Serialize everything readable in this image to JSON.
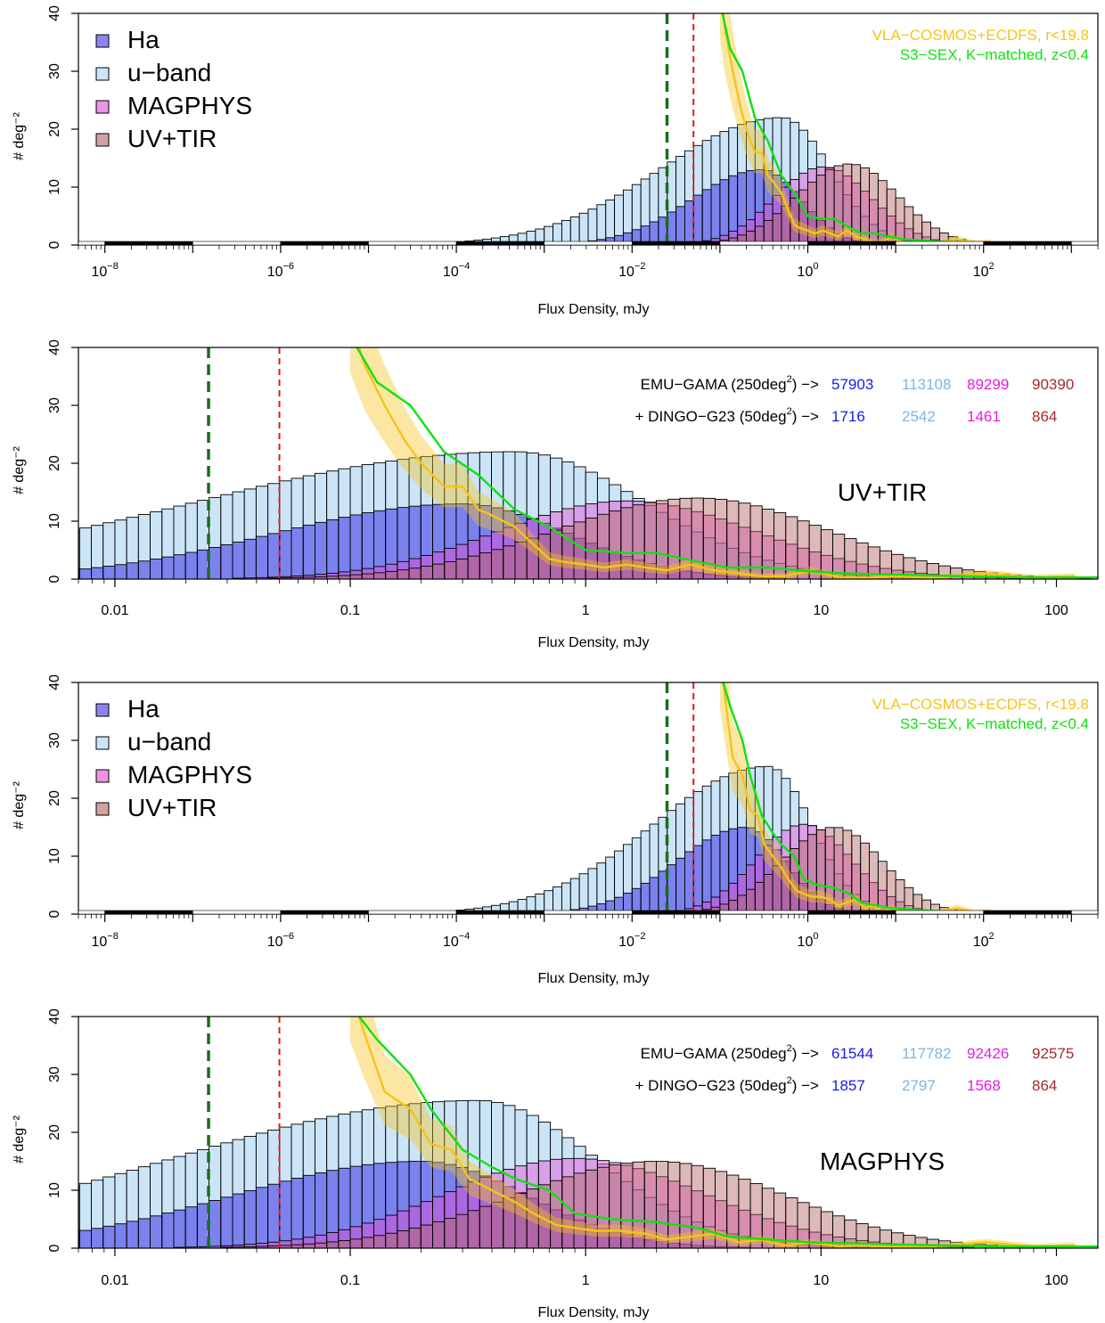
{
  "figure": {
    "colors": {
      "ha": "#3a32e6",
      "uband": "#a9d4f2",
      "magphys": "#e64bd2",
      "uvtir": "#b56363",
      "vla": "#f4c419",
      "s3sex": "#12e012",
      "green_dash": "#1a6e1a",
      "red_dash": "#e01a1a",
      "ha_text": "#1a1ae6",
      "uband_text": "#7cb6e2",
      "magphys_text": "#e61ae6",
      "uvtir_text": "#a52a2a"
    },
    "legend": {
      "hist_items": [
        {
          "key": "ha",
          "label": "Ha"
        },
        {
          "key": "uband",
          "label": "u−band"
        },
        {
          "key": "magphys",
          "label": "MAGPHYS"
        },
        {
          "key": "uvtir",
          "label": "UV+TIR"
        }
      ],
      "line_items": [
        {
          "key": "vla",
          "label": "VLA−COSMOS+ECDFS, r<19.8"
        },
        {
          "key": "s3sex",
          "label": "S3−SEX, K−matched, z<0.4"
        }
      ]
    },
    "markers": {
      "green_dashed_mJy": 0.025,
      "red_dashed_mJy": 0.05
    }
  },
  "chart_data": [
    {
      "panel": "a",
      "type": "bar",
      "xscale": "log",
      "xlim": [
        5e-09,
        2000
      ],
      "ylim": [
        0,
        40
      ],
      "xlabel": "Flux Density, mJy",
      "ylabel": "# deg⁻²",
      "x_ticks": [
        {
          "base": "10",
          "exp": "−8",
          "value": 1e-08
        },
        {
          "base": "10",
          "exp": "−6",
          "value": 1e-06
        },
        {
          "base": "10",
          "exp": "−4",
          "value": 0.0001
        },
        {
          "base": "10",
          "exp": "−2",
          "value": 0.01
        },
        {
          "base": "10",
          "exp": "0",
          "value": 1
        },
        {
          "base": "10",
          "exp": "2",
          "value": 100
        }
      ],
      "y_ticks": [
        "0",
        "10",
        "20",
        "30",
        "40"
      ],
      "grid": false,
      "legend": "top-left",
      "histograms": [
        {
          "name": "u−band",
          "key": "uband",
          "peak_x": 0.5,
          "peak_y": 22,
          "sigma_left": 1.35,
          "sigma_right": 0.55
        },
        {
          "name": "Ha",
          "key": "ha",
          "peak_x": 0.3,
          "peak_y": 13,
          "sigma_left": 0.8,
          "sigma_right": 0.45
        },
        {
          "name": "MAGPHYS",
          "key": "magphys",
          "peak_x": 1.5,
          "peak_y": 13.5,
          "sigma_left": 0.55,
          "sigma_right": 0.55
        },
        {
          "name": "UV+TIR",
          "key": "uvtir",
          "peak_x": 3.0,
          "peak_y": 14,
          "sigma_left": 0.6,
          "sigma_right": 0.55
        }
      ],
      "lines": [
        {
          "name": "VLA−COSMOS+ECDFS, r<19.8",
          "key": "vla",
          "band": true,
          "x": [
            0.1,
            0.115,
            0.14,
            0.17,
            0.2,
            0.25,
            0.3,
            0.35,
            0.4,
            0.5,
            0.6,
            0.7,
            0.8,
            1.0,
            1.2,
            1.5,
            1.8,
            2.2,
            2.8,
            3.5,
            4.5,
            5.5,
            7,
            9,
            12,
            15,
            20,
            30,
            50,
            80,
            120
          ],
          "y": [
            45,
            37,
            30,
            24,
            20,
            16,
            16,
            12,
            11,
            9,
            6,
            3.5,
            3,
            2.5,
            2,
            2.5,
            2,
            1.5,
            2.5,
            1.5,
            1,
            0.5,
            0.5,
            1.5,
            0.3,
            0.2,
            0.5,
            0.2,
            1,
            0.3,
            0.5
          ]
        },
        {
          "name": "S3−SEX, K−matched, z<0.4",
          "key": "s3sex",
          "band": false,
          "x": [
            0.1,
            0.13,
            0.18,
            0.25,
            0.35,
            0.5,
            0.7,
            1.0,
            1.5,
            2.0,
            3.0,
            4.0,
            6.0,
            8.0,
            12,
            20,
            40,
            80,
            150
          ],
          "y": [
            42,
            34,
            30,
            22,
            18,
            12,
            9,
            5,
            4.5,
            4.5,
            3,
            2,
            2,
            1.5,
            1,
            0.8,
            0.5,
            0.3,
            0.3
          ]
        }
      ],
      "info": null
    },
    {
      "panel": "b",
      "type": "bar",
      "xscale": "log",
      "xlim": [
        0.007,
        150
      ],
      "ylim": [
        0,
        40
      ],
      "xlabel": "Flux Density, mJy",
      "ylabel": "# deg⁻²",
      "x_ticks": [
        {
          "base": "0.01",
          "exp": "",
          "value": 0.01
        },
        {
          "base": "0.1",
          "exp": "",
          "value": 0.1
        },
        {
          "base": "1",
          "exp": "",
          "value": 1
        },
        {
          "base": "10",
          "exp": "",
          "value": 10
        },
        {
          "base": "100",
          "exp": "",
          "value": 100
        }
      ],
      "y_ticks": [
        "0",
        "10",
        "20",
        "30",
        "40"
      ],
      "grid": false,
      "histograms": [
        {
          "name": "u−band",
          "key": "uband",
          "peak_x": 0.5,
          "peak_y": 22,
          "sigma_left": 1.35,
          "sigma_right": 0.55
        },
        {
          "name": "Ha",
          "key": "ha",
          "peak_x": 0.3,
          "peak_y": 13,
          "sigma_left": 0.8,
          "sigma_right": 0.45
        },
        {
          "name": "MAGPHYS",
          "key": "magphys",
          "peak_x": 1.5,
          "peak_y": 13.5,
          "sigma_left": 0.55,
          "sigma_right": 0.55
        },
        {
          "name": "UV+TIR",
          "key": "uvtir",
          "peak_x": 3.0,
          "peak_y": 14,
          "sigma_left": 0.6,
          "sigma_right": 0.55
        }
      ],
      "lines": [
        {
          "name": "VLA−COSMOS+ECDFS, r<19.8",
          "key": "vla",
          "band": true,
          "x": [
            0.1,
            0.115,
            0.14,
            0.17,
            0.2,
            0.25,
            0.3,
            0.35,
            0.4,
            0.5,
            0.6,
            0.7,
            0.8,
            1.0,
            1.2,
            1.5,
            1.8,
            2.2,
            2.8,
            3.5,
            4.5,
            5.5,
            7,
            9,
            12,
            15,
            20,
            30,
            50,
            80,
            120
          ],
          "y": [
            45,
            37,
            30,
            24,
            20,
            16,
            16,
            12,
            11,
            9,
            6,
            3.5,
            3,
            2.5,
            2,
            2.5,
            2,
            1.5,
            2.5,
            1.5,
            1,
            0.5,
            0.5,
            1.5,
            0.3,
            0.2,
            0.5,
            0.2,
            1,
            0.3,
            0.5
          ]
        },
        {
          "name": "S3−SEX, K−matched, z<0.4",
          "key": "s3sex",
          "band": false,
          "x": [
            0.1,
            0.13,
            0.18,
            0.25,
            0.35,
            0.5,
            0.7,
            1.0,
            1.5,
            2.0,
            3.0,
            4.0,
            6.0,
            8.0,
            12,
            20,
            40,
            80,
            150
          ],
          "y": [
            42,
            34,
            30,
            22,
            18,
            12,
            9,
            5,
            4.5,
            4.5,
            3,
            2,
            2,
            1.5,
            1,
            0.8,
            0.5,
            0.3,
            0.3
          ]
        }
      ],
      "info": {
        "label": "UV+TIR",
        "row1": {
          "text": "EMU−GAMA (250deg",
          "sup": "2",
          "tail": ") −>",
          "values": [
            "57903",
            "113108",
            "89299",
            "90390"
          ]
        },
        "row2": {
          "text": "+ DINGO−G23 (50deg",
          "sup": "2",
          "tail": ") −>",
          "values": [
            "1716",
            "2542",
            "1461",
            "864"
          ]
        }
      }
    },
    {
      "panel": "c",
      "type": "bar",
      "xscale": "log",
      "xlim": [
        5e-09,
        2000
      ],
      "ylim": [
        0,
        40
      ],
      "xlabel": "Flux Density, mJy",
      "ylabel": "# deg⁻²",
      "x_ticks": [
        {
          "base": "10",
          "exp": "−8",
          "value": 1e-08
        },
        {
          "base": "10",
          "exp": "−6",
          "value": 1e-06
        },
        {
          "base": "10",
          "exp": "−4",
          "value": 0.0001
        },
        {
          "base": "10",
          "exp": "−2",
          "value": 0.01
        },
        {
          "base": "10",
          "exp": "0",
          "value": 1
        },
        {
          "base": "10",
          "exp": "2",
          "value": 100
        }
      ],
      "y_ticks": [
        "0",
        "10",
        "20",
        "30",
        "40"
      ],
      "grid": false,
      "legend": "top-left",
      "histograms": [
        {
          "name": "u−band",
          "key": "uband",
          "peak_x": 0.35,
          "peak_y": 25.5,
          "sigma_left": 1.3,
          "sigma_right": 0.5
        },
        {
          "name": "Ha",
          "key": "ha",
          "peak_x": 0.2,
          "peak_y": 15,
          "sigma_left": 0.8,
          "sigma_right": 0.45
        },
        {
          "name": "MAGPHYS",
          "key": "magphys",
          "peak_x": 0.9,
          "peak_y": 15.5,
          "sigma_left": 0.55,
          "sigma_right": 0.55
        },
        {
          "name": "UV+TIR",
          "key": "uvtir",
          "peak_x": 2.0,
          "peak_y": 15,
          "sigma_left": 0.6,
          "sigma_right": 0.55
        }
      ],
      "lines": [
        {
          "name": "VLA−COSMOS+ECDFS, r<19.8",
          "key": "vla",
          "band": true,
          "x": [
            0.1,
            0.115,
            0.14,
            0.18,
            0.22,
            0.27,
            0.32,
            0.4,
            0.5,
            0.6,
            0.75,
            0.9,
            1.1,
            1.4,
            1.8,
            2.2,
            2.8,
            3.5,
            4.5,
            5.5,
            7,
            9,
            12,
            15,
            20,
            30,
            50,
            80,
            120
          ],
          "y": [
            45,
            37,
            27,
            24,
            18,
            17,
            12,
            10,
            8,
            6,
            4,
            3.5,
            3,
            3,
            2.5,
            1.5,
            2,
            2.5,
            1,
            1.5,
            0.5,
            1,
            0.3,
            0.5,
            0.2,
            0.3,
            1,
            0.3,
            0.5
          ]
        },
        {
          "name": "S3−SEX, K−matched, z<0.4",
          "key": "s3sex",
          "band": false,
          "x": [
            0.1,
            0.13,
            0.18,
            0.22,
            0.3,
            0.4,
            0.5,
            0.7,
            0.9,
            1.3,
            2.0,
            3.0,
            4.0,
            6.0,
            9.0,
            15,
            30,
            60,
            150
          ],
          "y": [
            42,
            36,
            30,
            24,
            17,
            14,
            12,
            10,
            6,
            5,
            4.5,
            3.5,
            2,
            1.5,
            1,
            0.8,
            0.5,
            0.3,
            0.3
          ]
        }
      ],
      "info": null
    },
    {
      "panel": "d",
      "type": "bar",
      "xscale": "log",
      "xlim": [
        0.007,
        150
      ],
      "ylim": [
        0,
        40
      ],
      "xlabel": "Flux Density, mJy",
      "ylabel": "# deg⁻²",
      "x_ticks": [
        {
          "base": "0.01",
          "exp": "",
          "value": 0.01
        },
        {
          "base": "0.1",
          "exp": "",
          "value": 0.1
        },
        {
          "base": "1",
          "exp": "",
          "value": 1
        },
        {
          "base": "10",
          "exp": "",
          "value": 10
        },
        {
          "base": "100",
          "exp": "",
          "value": 100
        }
      ],
      "y_ticks": [
        "0",
        "10",
        "20",
        "30",
        "40"
      ],
      "grid": false,
      "histograms": [
        {
          "name": "u−band",
          "key": "uband",
          "peak_x": 0.35,
          "peak_y": 25.5,
          "sigma_left": 1.3,
          "sigma_right": 0.5
        },
        {
          "name": "Ha",
          "key": "ha",
          "peak_x": 0.2,
          "peak_y": 15,
          "sigma_left": 0.8,
          "sigma_right": 0.45
        },
        {
          "name": "MAGPHYS",
          "key": "magphys",
          "peak_x": 0.9,
          "peak_y": 15.5,
          "sigma_left": 0.55,
          "sigma_right": 0.55
        },
        {
          "name": "UV+TIR",
          "key": "uvtir",
          "peak_x": 2.0,
          "peak_y": 15,
          "sigma_left": 0.6,
          "sigma_right": 0.55
        }
      ],
      "lines": [
        {
          "name": "VLA−COSMOS+ECDFS, r<19.8",
          "key": "vla",
          "band": true,
          "x": [
            0.1,
            0.115,
            0.14,
            0.18,
            0.22,
            0.27,
            0.32,
            0.4,
            0.5,
            0.6,
            0.75,
            0.9,
            1.1,
            1.4,
            1.8,
            2.2,
            2.8,
            3.5,
            4.5,
            5.5,
            7,
            9,
            12,
            15,
            20,
            30,
            50,
            80,
            120
          ],
          "y": [
            45,
            37,
            27,
            24,
            18,
            17,
            12,
            10,
            8,
            6,
            4,
            3.5,
            3,
            3,
            2.5,
            1.5,
            2,
            2.5,
            1,
            1.5,
            0.5,
            1,
            0.3,
            0.5,
            0.2,
            0.3,
            1,
            0.3,
            0.5
          ]
        },
        {
          "name": "S3−SEX, K−matched, z<0.4",
          "key": "s3sex",
          "band": false,
          "x": [
            0.1,
            0.13,
            0.18,
            0.22,
            0.3,
            0.4,
            0.5,
            0.7,
            0.9,
            1.3,
            2.0,
            3.0,
            4.0,
            6.0,
            9.0,
            15,
            30,
            60,
            150
          ],
          "y": [
            42,
            36,
            30,
            24,
            17,
            14,
            12,
            10,
            6,
            5,
            4.5,
            3.5,
            2,
            1.5,
            1,
            0.8,
            0.5,
            0.3,
            0.3
          ]
        }
      ],
      "info": {
        "label": "MAGPHYS",
        "row1": {
          "text": "EMU−GAMA (250deg",
          "sup": "2",
          "tail": ") −>",
          "values": [
            "61544",
            "117782",
            "92426",
            "92575"
          ]
        },
        "row2": {
          "text": "+ DINGO−G23 (50deg",
          "sup": "2",
          "tail": ") −>",
          "values": [
            "1857",
            "2797",
            "1568",
            "864"
          ]
        }
      }
    }
  ]
}
